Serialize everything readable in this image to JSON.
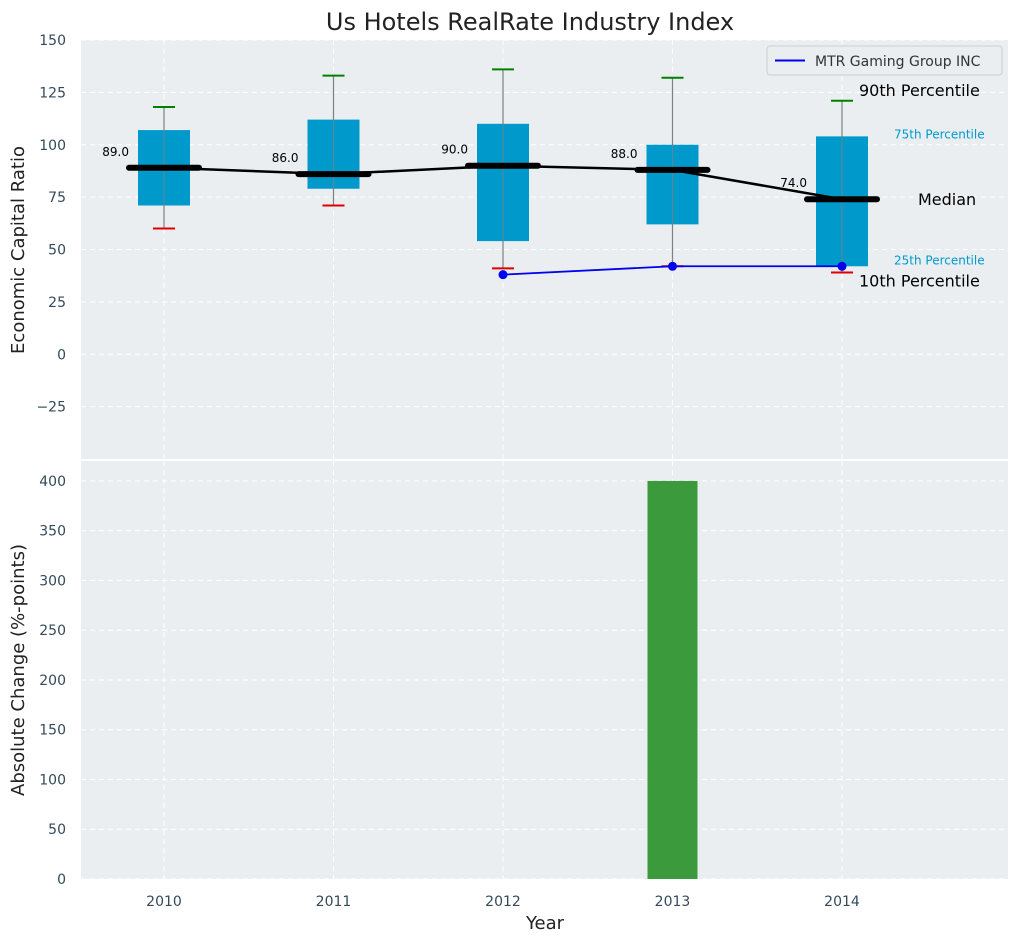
{
  "chart_data": [
    {
      "type": "box",
      "title": "Us Hotels RealRate Industry Index",
      "xlabel": "",
      "ylabel": "Economic Capital Ratio",
      "ylim": [
        -50,
        150
      ],
      "yticks": [
        -25,
        0,
        25,
        50,
        75,
        100,
        125,
        150
      ],
      "yticklabels": [
        "−25",
        "0",
        "25",
        "50",
        "75",
        "100",
        "125",
        "150"
      ],
      "grid": true,
      "categories": [
        2010,
        2011,
        2012,
        2013,
        2014
      ],
      "boxes": [
        {
          "year": 2010,
          "p10": 60,
          "p25": 71,
          "median": 89,
          "p75": 107,
          "p90": 118,
          "label": "89.0"
        },
        {
          "year": 2011,
          "p10": 71,
          "p25": 79,
          "median": 86,
          "p75": 112,
          "p90": 133,
          "label": "86.0"
        },
        {
          "year": 2012,
          "p10": 41,
          "p25": 54,
          "median": 90,
          "p75": 110,
          "p90": 136,
          "label": "90.0"
        },
        {
          "year": 2013,
          "p10": 42,
          "p25": 62,
          "median": 88,
          "p75": 100,
          "p90": 132,
          "label": "88.0"
        },
        {
          "year": 2014,
          "p10": 39,
          "p25": 42,
          "median": 74,
          "p75": 104,
          "p90": 121,
          "label": "74.0"
        }
      ],
      "company_series": {
        "name": "MTR Gaming Group INC",
        "x": [
          2012,
          2013,
          2014
        ],
        "y": [
          38,
          42,
          42
        ],
        "color": "#0000ee"
      },
      "legend": {
        "position": "top-right",
        "entries": [
          "MTR Gaming Group INC"
        ]
      },
      "annotations": {
        "p90": "90th Percentile",
        "p75": "75th Percentile",
        "median": "Median",
        "p25": "25th Percentile",
        "p10": "10th Percentile"
      },
      "colors": {
        "box": "#0099cc",
        "median_line": "#000000",
        "p90_cap": "#008000",
        "p10_cap": "#dd0000",
        "whisker": "#808080",
        "background": "#eaeef0",
        "annot_small": "#0099cc"
      }
    },
    {
      "type": "bar",
      "title": "",
      "xlabel": "Year",
      "ylabel": "Absolute Change (%-points)",
      "ylim": [
        0,
        420
      ],
      "yticks": [
        0,
        50,
        100,
        150,
        200,
        250,
        300,
        350,
        400
      ],
      "yticklabels": [
        "0",
        "50",
        "100",
        "150",
        "200",
        "250",
        "300",
        "350",
        "400"
      ],
      "grid": true,
      "categories": [
        "2010",
        "2011",
        "2012",
        "2013",
        "2014"
      ],
      "values": [
        0,
        0,
        0,
        400,
        0
      ],
      "colors": {
        "bar": "#3a9a3c",
        "background": "#eaeef0"
      }
    }
  ]
}
